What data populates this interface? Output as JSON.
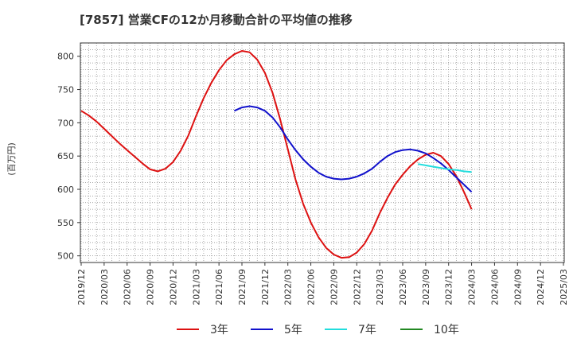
{
  "chart_data": {
    "type": "line",
    "title": "[7857]  営業CFの12か月移動合計の平均値の推移",
    "ylabel": "(百万円)",
    "xlabel": "",
    "ylim": [
      490,
      820
    ],
    "yticks": [
      500,
      550,
      600,
      650,
      700,
      750,
      800
    ],
    "xticks": [
      "2019/12",
      "2020/03",
      "2020/06",
      "2020/09",
      "2020/12",
      "2021/03",
      "2021/06",
      "2021/09",
      "2021/12",
      "2022/03",
      "2022/06",
      "2022/09",
      "2022/12",
      "2023/03",
      "2023/06",
      "2023/09",
      "2023/12",
      "2024/03",
      "2024/06",
      "2024/09",
      "2024/12",
      "2025/03"
    ],
    "grid": true,
    "legend_position": "bottom",
    "series": [
      {
        "name": "3年",
        "color": "#dd1111",
        "x": [
          "2019/12",
          "2020/01",
          "2020/02",
          "2020/03",
          "2020/04",
          "2020/05",
          "2020/06",
          "2020/07",
          "2020/08",
          "2020/09",
          "2020/10",
          "2020/11",
          "2020/12",
          "2021/01",
          "2021/02",
          "2021/03",
          "2021/04",
          "2021/05",
          "2021/06",
          "2021/07",
          "2021/08",
          "2021/09",
          "2021/10",
          "2021/11",
          "2021/12",
          "2022/01",
          "2022/02",
          "2022/03",
          "2022/04",
          "2022/05",
          "2022/06",
          "2022/07",
          "2022/08",
          "2022/09",
          "2022/10",
          "2022/11",
          "2022/12",
          "2023/01",
          "2023/02",
          "2023/03",
          "2023/04",
          "2023/05",
          "2023/06",
          "2023/07",
          "2023/08",
          "2023/09",
          "2023/10",
          "2023/11",
          "2023/12",
          "2024/01",
          "2024/02",
          "2024/03"
        ],
        "values": [
          718,
          711,
          702,
          691,
          680,
          669,
          659,
          649,
          639,
          630,
          627,
          631,
          641,
          658,
          681,
          710,
          737,
          760,
          779,
          794,
          803,
          808,
          806,
          795,
          775,
          745,
          705,
          660,
          615,
          578,
          550,
          528,
          512,
          502,
          497,
          498,
          505,
          518,
          538,
          564,
          587,
          607,
          622,
          635,
          645,
          652,
          655,
          650,
          638,
          620,
          596,
          570
        ]
      },
      {
        "name": "5年",
        "color": "#1111cc",
        "x": [
          "2021/08",
          "2021/09",
          "2021/10",
          "2021/11",
          "2021/12",
          "2022/01",
          "2022/02",
          "2022/03",
          "2022/04",
          "2022/05",
          "2022/06",
          "2022/07",
          "2022/08",
          "2022/09",
          "2022/10",
          "2022/11",
          "2022/12",
          "2023/01",
          "2023/02",
          "2023/03",
          "2023/04",
          "2023/05",
          "2023/06",
          "2023/07",
          "2023/08",
          "2023/09",
          "2023/10",
          "2023/11",
          "2023/12",
          "2024/01",
          "2024/02",
          "2024/03"
        ],
        "values": [
          718,
          723,
          725,
          723,
          718,
          708,
          693,
          675,
          659,
          645,
          634,
          625,
          619,
          616,
          615,
          616,
          619,
          624,
          631,
          641,
          650,
          656,
          659,
          660,
          658,
          654,
          647,
          639,
          629,
          618,
          607,
          596
        ]
      },
      {
        "name": "7年",
        "color": "#22dddd",
        "x": [
          "2023/08",
          "2023/09",
          "2023/10",
          "2023/11",
          "2023/12",
          "2024/01",
          "2024/02",
          "2024/03"
        ],
        "values": [
          638,
          636,
          634,
          632,
          630,
          629,
          627,
          626
        ]
      },
      {
        "name": "10年",
        "color": "#228822",
        "x": [],
        "values": []
      }
    ]
  }
}
